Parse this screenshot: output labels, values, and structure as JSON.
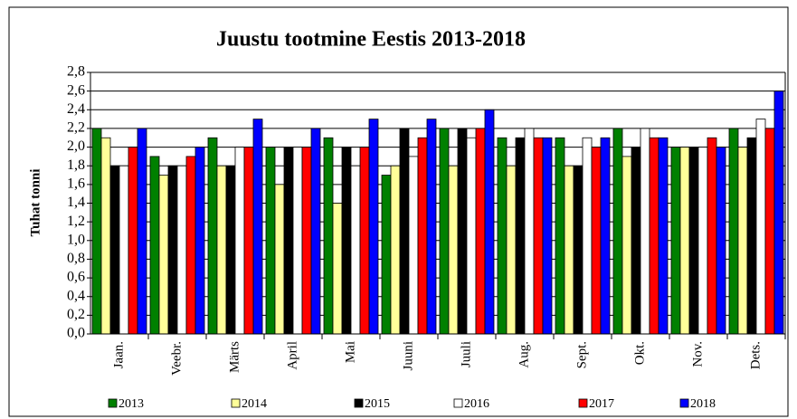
{
  "chart_data": {
    "type": "bar",
    "title": "Juustu tootmine  Eestis 2013-2018",
    "y_label": "Tuhat tonni",
    "categories": [
      "Jaan.",
      "Veebr.",
      "Märts",
      "April",
      "Mai",
      "Juuni",
      "Juuli",
      "Aug.",
      "Sept.",
      "Okt.",
      "Nov.",
      "Dets."
    ],
    "series": [
      {
        "name": "2013",
        "color": "#008000",
        "values": [
          2.2,
          1.9,
          2.1,
          2.0,
          2.1,
          1.7,
          2.2,
          2.1,
          2.1,
          2.2,
          2.0,
          2.2
        ]
      },
      {
        "name": "2014",
        "color": "#ffff99",
        "values": [
          2.1,
          1.7,
          1.8,
          1.6,
          1.4,
          1.8,
          1.8,
          1.8,
          1.8,
          1.9,
          2.0,
          2.0
        ]
      },
      {
        "name": "2015",
        "color": "#000000",
        "values": [
          1.8,
          1.8,
          1.8,
          2.0,
          2.0,
          2.2,
          2.2,
          2.1,
          1.8,
          2.0,
          2.0,
          2.1
        ]
      },
      {
        "name": "2016",
        "color": "#ffffff",
        "values": [
          1.8,
          1.8,
          2.0,
          2.0,
          1.8,
          1.9,
          2.1,
          2.2,
          2.1,
          2.2,
          2.0,
          2.3
        ]
      },
      {
        "name": "2017",
        "color": "#ff0000",
        "values": [
          2.0,
          1.9,
          2.0,
          2.0,
          2.0,
          2.1,
          2.2,
          2.1,
          2.0,
          2.1,
          2.1,
          2.2
        ]
      },
      {
        "name": "2018",
        "color": "#0000ff",
        "values": [
          2.2,
          2.0,
          2.3,
          2.2,
          2.3,
          2.3,
          2.4,
          2.1,
          2.1,
          2.1,
          2.0,
          2.6
        ]
      }
    ],
    "ylim": [
      0,
      2.8
    ],
    "yticks": [
      {
        "value": 0,
        "label": "0,0"
      },
      {
        "value": 0.2,
        "label": "0,2"
      },
      {
        "value": 0.4,
        "label": "0,4"
      },
      {
        "value": 0.6,
        "label": "0,6"
      },
      {
        "value": 0.8,
        "label": "0,8"
      },
      {
        "value": 1.0,
        "label": "1,0"
      },
      {
        "value": 1.2,
        "label": "1,2"
      },
      {
        "value": 1.4,
        "label": "1,4"
      },
      {
        "value": 1.6,
        "label": "1,6"
      },
      {
        "value": 1.8,
        "label": "1,8"
      },
      {
        "value": 2.0,
        "label": "2,0"
      },
      {
        "value": 2.2,
        "label": "2,2"
      },
      {
        "value": 2.4,
        "label": "2,4"
      },
      {
        "value": 2.6,
        "label": "2,6"
      },
      {
        "value": 2.8,
        "label": "2,8"
      }
    ],
    "grid": true,
    "legend": "bottom"
  }
}
